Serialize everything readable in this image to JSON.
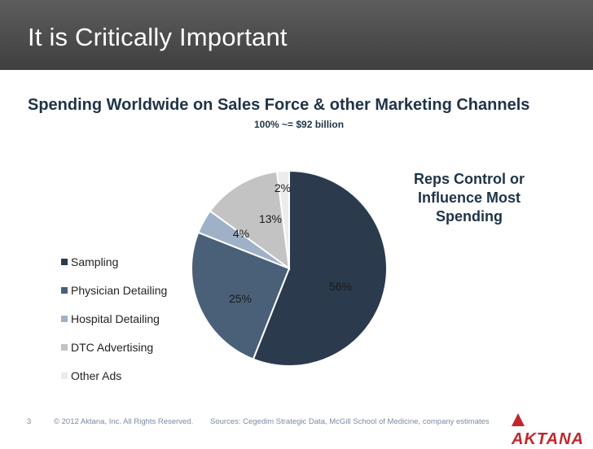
{
  "header": {
    "title": "It is Critically Important"
  },
  "slide": {
    "subtitle": "Spending Worldwide on Sales Force & other Marketing Channels",
    "note": "100% ~= $92 billion",
    "callout": [
      "Reps Control or",
      "Influence Most",
      "Spending"
    ]
  },
  "chart_data": {
    "type": "pie",
    "title": "",
    "labels": [
      "Sampling",
      "Physician Detailing",
      "Hospital Detailing",
      "DTC Advertising",
      "Other Ads"
    ],
    "values": [
      56,
      25,
      4,
      13,
      2
    ],
    "value_labels": [
      "56%",
      "25%",
      "4%",
      "13%",
      "2%"
    ],
    "colors": [
      "#2b3a4d",
      "#4a6079",
      "#9eb1c7",
      "#c3c3c3",
      "#ececec"
    ],
    "legend_placement": "left",
    "start": "top",
    "direction": "clockwise"
  },
  "footer": {
    "page_number": "3",
    "copyright": "© 2012 Aktana, Inc. All Rights Reserved.",
    "sources": "Sources: Cegedim Strategic Data, McGill School of Medicine, company estimates",
    "logo": "AKTANA"
  }
}
